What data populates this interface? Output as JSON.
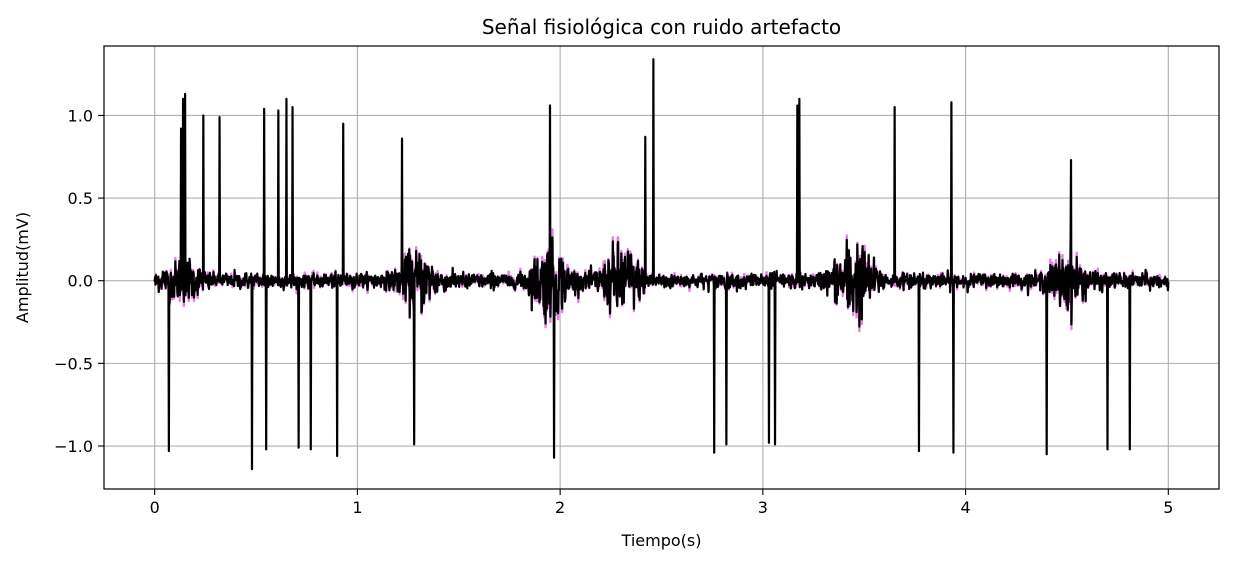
{
  "chart_data": {
    "type": "line",
    "title": "Señal fisiológica con ruido artefacto",
    "xlabel": "Tiempo(s)",
    "ylabel": "Amplitud(mV)",
    "xlim": [
      -0.25,
      5.25
    ],
    "ylim": [
      -1.26,
      1.42
    ],
    "grid": true,
    "x_ticks": [
      0,
      1,
      2,
      3,
      4,
      5
    ],
    "x_tick_labels": [
      "0",
      "1",
      "2",
      "3",
      "4",
      "5"
    ],
    "y_ticks": [
      -1.0,
      -0.5,
      0.0,
      0.5,
      1.0
    ],
    "y_tick_labels": [
      "−1.0",
      "−0.5",
      "0.0",
      "0.5",
      "1.0"
    ],
    "series": [
      {
        "color": "#e57ee5",
        "role": "underlying",
        "x_range": [
          0,
          5
        ],
        "noise_bursts": [
          {
            "x": 0.14,
            "amp": 0.2
          },
          {
            "x": 1.3,
            "amp": 0.3
          },
          {
            "x": 1.95,
            "amp": 0.4
          },
          {
            "x": 2.3,
            "amp": 0.4
          },
          {
            "x": 3.45,
            "amp": 0.45
          },
          {
            "x": 4.5,
            "amp": 0.3
          }
        ]
      },
      {
        "color": "#000000",
        "role": "artifact",
        "x_range": [
          0,
          5
        ],
        "spikes": [
          {
            "x": 0.07,
            "y": -1.03
          },
          {
            "x": 0.13,
            "y": 0.92
          },
          {
            "x": 0.14,
            "y": 1.1
          },
          {
            "x": 0.15,
            "y": 1.13
          },
          {
            "x": 0.24,
            "y": 1.0
          },
          {
            "x": 0.32,
            "y": 0.99
          },
          {
            "x": 0.48,
            "y": -1.14
          },
          {
            "x": 0.54,
            "y": 1.04
          },
          {
            "x": 0.55,
            "y": -1.02
          },
          {
            "x": 0.61,
            "y": 1.03
          },
          {
            "x": 0.65,
            "y": 1.1
          },
          {
            "x": 0.68,
            "y": 1.05
          },
          {
            "x": 0.71,
            "y": -1.01
          },
          {
            "x": 0.77,
            "y": -1.02
          },
          {
            "x": 0.9,
            "y": -1.06
          },
          {
            "x": 0.93,
            "y": 0.95
          },
          {
            "x": 1.22,
            "y": 0.86
          },
          {
            "x": 1.28,
            "y": -0.99
          },
          {
            "x": 1.95,
            "y": 1.06
          },
          {
            "x": 1.97,
            "y": -1.07
          },
          {
            "x": 2.42,
            "y": 0.87
          },
          {
            "x": 2.46,
            "y": 1.34
          },
          {
            "x": 2.76,
            "y": -1.04
          },
          {
            "x": 2.82,
            "y": -0.99
          },
          {
            "x": 3.03,
            "y": -0.98
          },
          {
            "x": 3.06,
            "y": -0.99
          },
          {
            "x": 3.17,
            "y": 1.06
          },
          {
            "x": 3.18,
            "y": 1.1
          },
          {
            "x": 3.65,
            "y": 1.05
          },
          {
            "x": 3.77,
            "y": -1.03
          },
          {
            "x": 3.93,
            "y": 1.08
          },
          {
            "x": 3.94,
            "y": -1.04
          },
          {
            "x": 4.4,
            "y": -1.05
          },
          {
            "x": 4.52,
            "y": 0.73
          },
          {
            "x": 4.7,
            "y": -1.02
          },
          {
            "x": 4.81,
            "y": -1.02
          }
        ]
      }
    ]
  }
}
